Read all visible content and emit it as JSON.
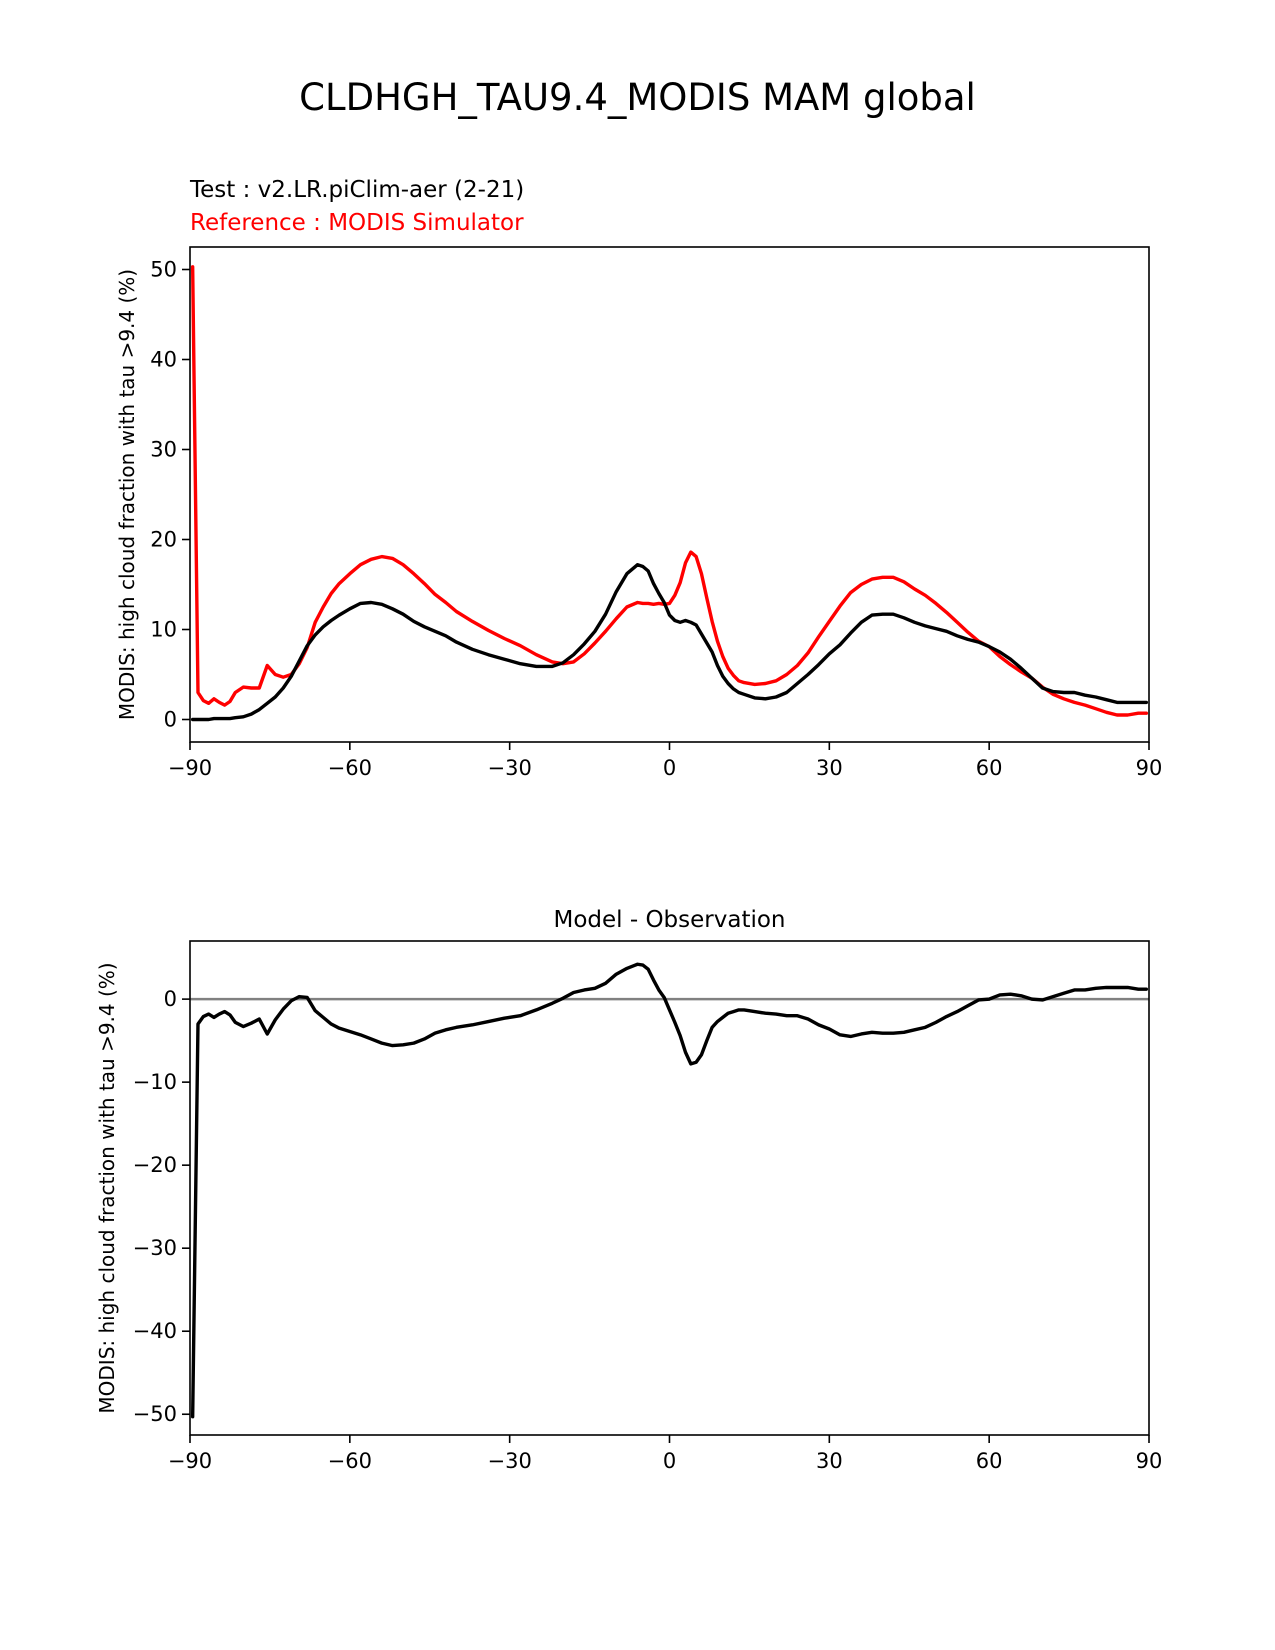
{
  "figure": {
    "suptitle": "CLDHGH_TAU9.4_MODIS MAM global"
  },
  "colors": {
    "test": "#000000",
    "reference": "#ff0000",
    "zero_line": "#808080"
  },
  "chart_data": [
    {
      "type": "line",
      "test_label": "Test : v2.LR.piClim-aer (2-21)",
      "reference_label": "Reference : MODIS Simulator",
      "title": "",
      "xlabel": "",
      "ylabel": "MODIS: high cloud fraction with tau >9.4 (%)",
      "xlim": [
        -90,
        90
      ],
      "ylim": [
        -2.5,
        52.5
      ],
      "xticks": [
        -90,
        -60,
        -30,
        0,
        30,
        60,
        90
      ],
      "yticks": [
        0,
        10,
        20,
        30,
        40,
        50
      ],
      "grid": false,
      "x": [
        -89.5,
        -88.5,
        -87.5,
        -86.5,
        -85.5,
        -84.5,
        -83.5,
        -82.5,
        -81.5,
        -80,
        -78.5,
        -77,
        -75.5,
        -74,
        -72.5,
        -71,
        -69.5,
        -68,
        -66.5,
        -65,
        -63.5,
        -62,
        -60,
        -58,
        -56,
        -54,
        -52,
        -50,
        -48,
        -46,
        -44,
        -42,
        -40,
        -37,
        -34,
        -31,
        -28,
        -25,
        -22,
        -20,
        -18,
        -16,
        -14,
        -12,
        -10,
        -8,
        -6,
        -5,
        -4,
        -3,
        -2,
        -1,
        0,
        1,
        2,
        3,
        4,
        5,
        6,
        7,
        8,
        9,
        10,
        11,
        12,
        13,
        14,
        16,
        18,
        20,
        22,
        24,
        26,
        28,
        30,
        32,
        34,
        36,
        38,
        40,
        42,
        44,
        46,
        48,
        50,
        52,
        54,
        56,
        58,
        60,
        62,
        64,
        66,
        68,
        70,
        72,
        74,
        76,
        78,
        80,
        82,
        84,
        86,
        88,
        89.5
      ],
      "series": [
        {
          "role": "test",
          "values": [
            0.0,
            0.0,
            0.0,
            0.0,
            0.1,
            0.1,
            0.1,
            0.1,
            0.2,
            0.3,
            0.6,
            1.1,
            1.8,
            2.5,
            3.5,
            4.8,
            6.5,
            8.2,
            9.4,
            10.3,
            11.0,
            11.6,
            12.3,
            12.9,
            13.0,
            12.8,
            12.3,
            11.7,
            10.9,
            10.3,
            9.8,
            9.3,
            8.6,
            7.8,
            7.2,
            6.7,
            6.2,
            5.9,
            5.9,
            6.3,
            7.2,
            8.4,
            9.8,
            11.7,
            14.2,
            16.2,
            17.2,
            17.0,
            16.5,
            15.1,
            14.0,
            13.0,
            11.6,
            11.0,
            10.8,
            11.0,
            10.8,
            10.5,
            9.5,
            8.5,
            7.5,
            6.0,
            4.8,
            4.0,
            3.4,
            3.0,
            2.8,
            2.4,
            2.3,
            2.5,
            3.0,
            4.0,
            5.0,
            6.1,
            7.3,
            8.3,
            9.6,
            10.8,
            11.6,
            11.7,
            11.7,
            11.3,
            10.8,
            10.4,
            10.1,
            9.8,
            9.3,
            8.9,
            8.6,
            8.1,
            7.5,
            6.7,
            5.7,
            4.6,
            3.5,
            3.1,
            3.0,
            3.0,
            2.7,
            2.5,
            2.2,
            1.9,
            1.9,
            1.9,
            1.9
          ]
        },
        {
          "role": "reference",
          "values": [
            50.3,
            3.0,
            2.1,
            1.8,
            2.3,
            1.9,
            1.6,
            2.0,
            3.0,
            3.6,
            3.5,
            3.5,
            6.0,
            5.0,
            4.7,
            5.0,
            6.2,
            8.0,
            10.8,
            12.5,
            14.0,
            15.1,
            16.2,
            17.2,
            17.8,
            18.1,
            17.9,
            17.2,
            16.2,
            15.1,
            13.9,
            13.0,
            12.0,
            10.9,
            9.9,
            9.0,
            8.2,
            7.2,
            6.4,
            6.2,
            6.4,
            7.3,
            8.5,
            9.8,
            11.2,
            12.5,
            13.0,
            12.9,
            12.9,
            12.8,
            12.9,
            12.8,
            12.9,
            13.8,
            15.2,
            17.4,
            18.6,
            18.1,
            16.2,
            13.5,
            10.9,
            8.7,
            7.0,
            5.7,
            4.9,
            4.3,
            4.1,
            3.9,
            4.0,
            4.3,
            5.0,
            6.0,
            7.4,
            9.2,
            10.9,
            12.6,
            14.1,
            15.0,
            15.6,
            15.8,
            15.8,
            15.3,
            14.5,
            13.8,
            12.9,
            11.9,
            10.8,
            9.7,
            8.7,
            8.1,
            7.0,
            6.1,
            5.3,
            4.6,
            3.6,
            2.8,
            2.3,
            1.9,
            1.6,
            1.2,
            0.8,
            0.5,
            0.5,
            0.7,
            0.7
          ]
        }
      ]
    },
    {
      "type": "line",
      "title": "Model - Observation",
      "xlabel": "",
      "ylabel": "MODIS: high cloud fraction with tau >9.4 (%)",
      "xlim": [
        -90,
        90
      ],
      "ylim": [
        -52.5,
        7
      ],
      "xticks": [
        -90,
        -60,
        -30,
        0,
        30,
        60,
        90
      ],
      "yticks": [
        0,
        -10,
        -20,
        -30,
        -40,
        -50
      ],
      "grid": false,
      "zero_line": 0,
      "x": [
        -89.5,
        -88.5,
        -87.5,
        -86.5,
        -85.5,
        -84.5,
        -83.5,
        -82.5,
        -81.5,
        -80,
        -78.5,
        -77,
        -75.5,
        -74,
        -72.5,
        -71,
        -69.5,
        -68,
        -66.5,
        -65,
        -63.5,
        -62,
        -60,
        -58,
        -56,
        -54,
        -52,
        -50,
        -48,
        -46,
        -44,
        -42,
        -40,
        -37,
        -34,
        -31,
        -28,
        -25,
        -22,
        -20,
        -18,
        -16,
        -14,
        -12,
        -10,
        -8,
        -6,
        -5,
        -4,
        -3,
        -2,
        -1,
        0,
        1,
        2,
        3,
        4,
        5,
        6,
        7,
        8,
        9,
        10,
        11,
        12,
        13,
        14,
        16,
        18,
        20,
        22,
        24,
        26,
        28,
        30,
        32,
        34,
        36,
        38,
        40,
        42,
        44,
        46,
        48,
        50,
        52,
        54,
        56,
        58,
        60,
        62,
        64,
        66,
        68,
        70,
        72,
        74,
        76,
        78,
        80,
        82,
        84,
        86,
        88,
        89.5
      ],
      "series": [
        {
          "role": "difference",
          "values": [
            -50.3,
            -3.0,
            -2.1,
            -1.8,
            -2.2,
            -1.8,
            -1.5,
            -1.9,
            -2.8,
            -3.3,
            -2.9,
            -2.4,
            -4.2,
            -2.5,
            -1.2,
            -0.2,
            0.3,
            0.2,
            -1.4,
            -2.2,
            -3.0,
            -3.5,
            -3.9,
            -4.3,
            -4.8,
            -5.3,
            -5.6,
            -5.5,
            -5.3,
            -4.8,
            -4.1,
            -3.7,
            -3.4,
            -3.1,
            -2.7,
            -2.3,
            -2.0,
            -1.3,
            -0.5,
            0.1,
            0.8,
            1.1,
            1.3,
            1.9,
            3.0,
            3.7,
            4.2,
            4.1,
            3.6,
            2.3,
            1.1,
            0.2,
            -1.3,
            -2.8,
            -4.4,
            -6.4,
            -7.8,
            -7.6,
            -6.7,
            -5.0,
            -3.4,
            -2.7,
            -2.2,
            -1.7,
            -1.5,
            -1.3,
            -1.3,
            -1.5,
            -1.7,
            -1.8,
            -2.0,
            -2.0,
            -2.4,
            -3.1,
            -3.6,
            -4.3,
            -4.5,
            -4.2,
            -4.0,
            -4.1,
            -4.1,
            -4.0,
            -3.7,
            -3.4,
            -2.8,
            -2.1,
            -1.5,
            -0.8,
            -0.1,
            0.0,
            0.5,
            0.6,
            0.4,
            0.0,
            -0.1,
            0.3,
            0.7,
            1.1,
            1.1,
            1.3,
            1.4,
            1.4,
            1.4,
            1.2,
            1.2
          ]
        }
      ]
    }
  ]
}
